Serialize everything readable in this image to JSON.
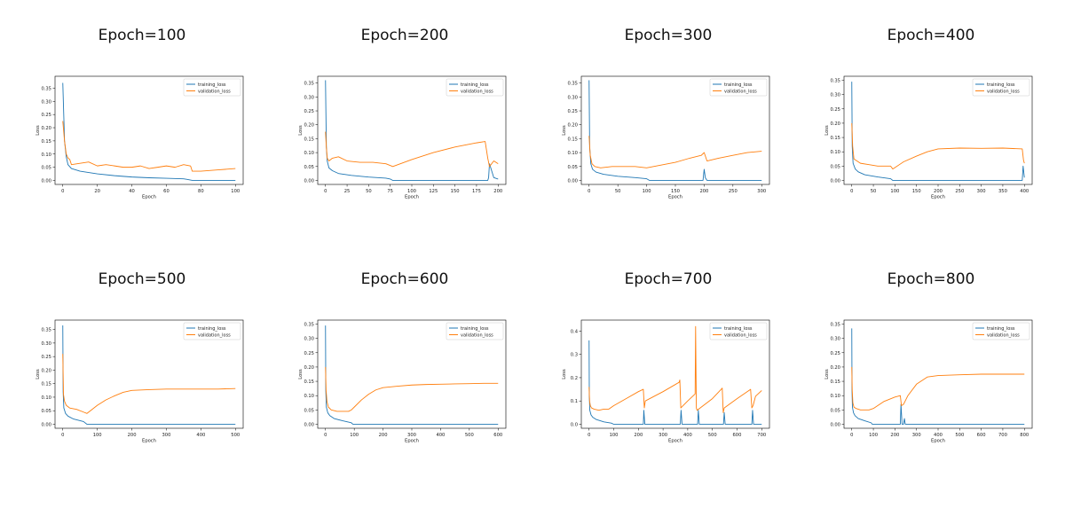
{
  "figure": {
    "legend_labels": [
      "training_loss",
      "validation_loss"
    ],
    "legend_position": "upper-right",
    "colors": {
      "training_loss": "#1f77b4",
      "validation_loss": "#ff7f0e",
      "axis": "#000000"
    }
  },
  "chart_data": [
    {
      "type": "line",
      "title": "Epoch=100",
      "xlabel": "Epoch",
      "ylabel": "Loss",
      "xlim": [
        0,
        100
      ],
      "ylim": [
        0,
        0.38
      ],
      "xticks": [
        0,
        20,
        40,
        60,
        80,
        100
      ],
      "yticks": [
        0.0,
        0.05,
        0.1,
        0.15,
        0.2,
        0.25,
        0.3,
        0.35
      ],
      "ytick_labels": [
        "0.00",
        "0.05",
        "0.10",
        "0.15",
        "0.20",
        "0.25",
        "0.30",
        "0.35"
      ],
      "series": [
        {
          "name": "training_loss",
          "x": [
            0,
            1,
            2,
            3,
            5,
            10,
            20,
            30,
            40,
            50,
            60,
            70,
            72,
            75,
            80,
            90,
            100
          ],
          "y": [
            0.37,
            0.15,
            0.09,
            0.06,
            0.045,
            0.035,
            0.025,
            0.018,
            0.013,
            0.01,
            0.008,
            0.006,
            0.004,
            0.0,
            0.0,
            0.0,
            0.0
          ]
        },
        {
          "name": "validation_loss",
          "x": [
            0,
            1,
            2,
            3,
            4,
            5,
            10,
            15,
            20,
            25,
            30,
            35,
            40,
            45,
            50,
            55,
            60,
            65,
            70,
            74,
            75,
            80,
            90,
            100
          ],
          "y": [
            0.225,
            0.15,
            0.1,
            0.085,
            0.08,
            0.06,
            0.065,
            0.07,
            0.055,
            0.06,
            0.055,
            0.05,
            0.05,
            0.055,
            0.045,
            0.05,
            0.055,
            0.05,
            0.06,
            0.055,
            0.035,
            0.035,
            0.04,
            0.045
          ]
        }
      ]
    },
    {
      "type": "line",
      "title": "Epoch=200",
      "xlabel": "Epoch",
      "ylabel": "Loss",
      "xlim": [
        0,
        200
      ],
      "ylim": [
        0,
        0.36
      ],
      "xticks": [
        0,
        25,
        50,
        75,
        100,
        125,
        150,
        175,
        200
      ],
      "yticks": [
        0.0,
        0.05,
        0.1,
        0.15,
        0.2,
        0.25,
        0.3,
        0.35
      ],
      "ytick_labels": [
        "0.00",
        "0.05",
        "0.10",
        "0.15",
        "0.20",
        "0.25",
        "0.30",
        "0.35"
      ],
      "series": [
        {
          "name": "training_loss",
          "x": [
            0,
            1,
            2,
            4,
            8,
            15,
            30,
            50,
            70,
            75,
            78,
            100,
            150,
            188,
            189,
            190,
            195,
            200
          ],
          "y": [
            0.36,
            0.12,
            0.07,
            0.045,
            0.035,
            0.025,
            0.018,
            0.012,
            0.008,
            0.005,
            0.0,
            0.0,
            0.0,
            0.0,
            0.01,
            0.06,
            0.01,
            0.005
          ]
        },
        {
          "name": "validation_loss",
          "x": [
            0,
            1,
            2,
            4,
            8,
            15,
            25,
            40,
            55,
            70,
            78,
            100,
            125,
            150,
            175,
            185,
            188,
            190,
            195,
            200
          ],
          "y": [
            0.175,
            0.12,
            0.08,
            0.07,
            0.08,
            0.085,
            0.07,
            0.065,
            0.065,
            0.06,
            0.05,
            0.075,
            0.1,
            0.12,
            0.135,
            0.14,
            0.08,
            0.05,
            0.07,
            0.06
          ]
        }
      ]
    },
    {
      "type": "line",
      "title": "Epoch=300",
      "xlabel": "Epoch",
      "ylabel": "Loss",
      "xlim": [
        0,
        300
      ],
      "ylim": [
        0,
        0.36
      ],
      "xticks": [
        0,
        50,
        100,
        150,
        200,
        250,
        300
      ],
      "yticks": [
        0.0,
        0.05,
        0.1,
        0.15,
        0.2,
        0.25,
        0.3,
        0.35
      ],
      "ytick_labels": [
        "0.00",
        "0.05",
        "0.10",
        "0.15",
        "0.20",
        "0.25",
        "0.30",
        "0.35"
      ],
      "series": [
        {
          "name": "training_loss",
          "x": [
            0,
            1,
            3,
            6,
            12,
            25,
            50,
            80,
            100,
            105,
            150,
            198,
            200,
            202,
            205,
            250,
            300
          ],
          "y": [
            0.36,
            0.12,
            0.06,
            0.04,
            0.03,
            0.022,
            0.015,
            0.01,
            0.006,
            0.0,
            0.0,
            0.0,
            0.04,
            0.01,
            0.0,
            0.0,
            0.0
          ]
        },
        {
          "name": "validation_loss",
          "x": [
            0,
            2,
            5,
            10,
            20,
            40,
            60,
            80,
            100,
            125,
            150,
            175,
            195,
            200,
            205,
            225,
            250,
            275,
            300
          ],
          "y": [
            0.16,
            0.09,
            0.06,
            0.05,
            0.045,
            0.05,
            0.05,
            0.05,
            0.045,
            0.055,
            0.065,
            0.08,
            0.09,
            0.1,
            0.07,
            0.08,
            0.09,
            0.1,
            0.105
          ]
        }
      ]
    },
    {
      "type": "line",
      "title": "Epoch=400",
      "xlabel": "Epoch",
      "ylabel": "Loss",
      "xlim": [
        0,
        400
      ],
      "ylim": [
        0,
        0.35
      ],
      "xticks": [
        0,
        50,
        100,
        150,
        200,
        250,
        300,
        350,
        400
      ],
      "yticks": [
        0.0,
        0.05,
        0.1,
        0.15,
        0.2,
        0.25,
        0.3,
        0.35
      ],
      "ytick_labels": [
        "0.00",
        "0.05",
        "0.10",
        "0.15",
        "0.20",
        "0.25",
        "0.30",
        "0.35"
      ],
      "series": [
        {
          "name": "training_loss",
          "x": [
            0,
            1,
            3,
            8,
            15,
            30,
            60,
            90,
            95,
            150,
            300,
            395,
            397,
            400
          ],
          "y": [
            0.345,
            0.12,
            0.06,
            0.04,
            0.03,
            0.02,
            0.012,
            0.006,
            0.0,
            0.0,
            0.0,
            0.0,
            0.05,
            0.01
          ]
        },
        {
          "name": "validation_loss",
          "x": [
            0,
            2,
            5,
            10,
            20,
            40,
            60,
            90,
            95,
            120,
            150,
            175,
            200,
            250,
            300,
            350,
            395,
            398,
            400
          ],
          "y": [
            0.2,
            0.12,
            0.075,
            0.07,
            0.06,
            0.055,
            0.05,
            0.05,
            0.04,
            0.065,
            0.085,
            0.1,
            0.11,
            0.113,
            0.112,
            0.113,
            0.11,
            0.07,
            0.06
          ]
        }
      ]
    },
    {
      "type": "line",
      "title": "Epoch=500",
      "xlabel": "Epoch",
      "ylabel": "Loss",
      "xlim": [
        0,
        500
      ],
      "ylim": [
        0,
        0.37
      ],
      "xticks": [
        0,
        100,
        200,
        300,
        400,
        500
      ],
      "yticks": [
        0.0,
        0.05,
        0.1,
        0.15,
        0.2,
        0.25,
        0.3,
        0.35
      ],
      "ytick_labels": [
        "0.00",
        "0.05",
        "0.10",
        "0.15",
        "0.20",
        "0.25",
        "0.30",
        "0.35"
      ],
      "series": [
        {
          "name": "training_loss",
          "x": [
            0,
            1,
            3,
            8,
            15,
            30,
            60,
            70,
            100,
            200,
            300,
            400,
            500
          ],
          "y": [
            0.365,
            0.12,
            0.06,
            0.04,
            0.03,
            0.02,
            0.01,
            0.0,
            0.0,
            0.0,
            0.0,
            0.0,
            0.0
          ]
        },
        {
          "name": "validation_loss",
          "x": [
            0,
            2,
            5,
            10,
            20,
            40,
            60,
            70,
            80,
            100,
            125,
            150,
            175,
            200,
            250,
            300,
            350,
            400,
            450,
            500
          ],
          "y": [
            0.26,
            0.11,
            0.085,
            0.07,
            0.06,
            0.055,
            0.045,
            0.04,
            0.05,
            0.07,
            0.09,
            0.105,
            0.118,
            0.125,
            0.128,
            0.13,
            0.13,
            0.13,
            0.13,
            0.132
          ]
        }
      ]
    },
    {
      "type": "line",
      "title": "Epoch=600",
      "xlabel": "Epoch",
      "ylabel": "Loss",
      "xlim": [
        0,
        600
      ],
      "ylim": [
        0,
        0.35
      ],
      "xticks": [
        0,
        100,
        200,
        300,
        400,
        500,
        600
      ],
      "yticks": [
        0.0,
        0.05,
        0.1,
        0.15,
        0.2,
        0.25,
        0.3,
        0.35
      ],
      "ytick_labels": [
        "0.00",
        "0.05",
        "0.10",
        "0.15",
        "0.20",
        "0.25",
        "0.30",
        "0.35"
      ],
      "series": [
        {
          "name": "training_loss",
          "x": [
            0,
            1,
            3,
            8,
            15,
            30,
            60,
            90,
            95,
            200,
            400,
            600
          ],
          "y": [
            0.345,
            0.12,
            0.06,
            0.04,
            0.03,
            0.02,
            0.012,
            0.005,
            0.0,
            0.0,
            0.0,
            0.0
          ]
        },
        {
          "name": "validation_loss",
          "x": [
            0,
            2,
            5,
            10,
            20,
            40,
            60,
            80,
            90,
            100,
            125,
            150,
            175,
            200,
            250,
            300,
            350,
            400,
            450,
            500,
            550,
            600
          ],
          "y": [
            0.2,
            0.12,
            0.08,
            0.06,
            0.05,
            0.045,
            0.045,
            0.045,
            0.05,
            0.06,
            0.085,
            0.105,
            0.12,
            0.128,
            0.133,
            0.137,
            0.139,
            0.14,
            0.141,
            0.142,
            0.143,
            0.143
          ]
        }
      ]
    },
    {
      "type": "line",
      "title": "Epoch=700",
      "xlabel": "Epoch",
      "ylabel": "Loss",
      "xlim": [
        0,
        700
      ],
      "ylim": [
        0,
        0.43
      ],
      "xticks": [
        0,
        100,
        200,
        300,
        400,
        500,
        600,
        700
      ],
      "yticks": [
        0.0,
        0.1,
        0.2,
        0.3,
        0.4
      ],
      "ytick_labels": [
        "0.0",
        "0.1",
        "0.2",
        "0.3",
        "0.4"
      ],
      "series": [
        {
          "name": "training_loss",
          "x": [
            0,
            1,
            3,
            8,
            15,
            30,
            60,
            90,
            100,
            220,
            222,
            226,
            370,
            373,
            377,
            440,
            443,
            447,
            545,
            548,
            552,
            660,
            663,
            667,
            690,
            700
          ],
          "y": [
            0.36,
            0.12,
            0.06,
            0.04,
            0.03,
            0.02,
            0.01,
            0.005,
            0.0,
            0.0,
            0.06,
            0.0,
            0.0,
            0.06,
            0.0,
            0.0,
            0.06,
            0.0,
            0.0,
            0.05,
            0.0,
            0.0,
            0.06,
            0.0,
            0.0,
            0.0
          ]
        },
        {
          "name": "validation_loss",
          "x": [
            0,
            2,
            5,
            10,
            20,
            40,
            60,
            80,
            100,
            150,
            200,
            220,
            224,
            228,
            300,
            365,
            368,
            372,
            400,
            430,
            432,
            435,
            438,
            500,
            540,
            544,
            548,
            600,
            655,
            660,
            665,
            675,
            700
          ],
          "y": [
            0.16,
            0.1,
            0.08,
            0.07,
            0.065,
            0.06,
            0.065,
            0.065,
            0.08,
            0.11,
            0.14,
            0.15,
            0.07,
            0.1,
            0.14,
            0.18,
            0.19,
            0.07,
            0.1,
            0.13,
            0.42,
            0.07,
            0.06,
            0.11,
            0.155,
            0.05,
            0.07,
            0.11,
            0.15,
            0.07,
            0.08,
            0.12,
            0.145
          ]
        }
      ]
    },
    {
      "type": "line",
      "title": "Epoch=800",
      "xlabel": "Epoch",
      "ylabel": "Loss",
      "xlim": [
        0,
        800
      ],
      "ylim": [
        0,
        0.35
      ],
      "xticks": [
        0,
        100,
        200,
        300,
        400,
        500,
        600,
        700,
        800
      ],
      "yticks": [
        0.0,
        0.05,
        0.1,
        0.15,
        0.2,
        0.25,
        0.3,
        0.35
      ],
      "ytick_labels": [
        "0.00",
        "0.05",
        "0.10",
        "0.15",
        "0.20",
        "0.25",
        "0.30",
        "0.35"
      ],
      "series": [
        {
          "name": "training_loss",
          "x": [
            0,
            1,
            3,
            8,
            15,
            30,
            60,
            90,
            95,
            225,
            228,
            233,
            240,
            244,
            248,
            400,
            600,
            800
          ],
          "y": [
            0.335,
            0.12,
            0.06,
            0.04,
            0.03,
            0.02,
            0.012,
            0.005,
            0.0,
            0.0,
            0.07,
            0.0,
            0.0,
            0.02,
            0.0,
            0.0,
            0.0,
            0.0
          ]
        },
        {
          "name": "validation_loss",
          "x": [
            0,
            2,
            5,
            10,
            20,
            40,
            60,
            80,
            100,
            150,
            200,
            225,
            230,
            240,
            260,
            300,
            350,
            400,
            500,
            600,
            700,
            800
          ],
          "y": [
            0.2,
            0.12,
            0.075,
            0.06,
            0.055,
            0.05,
            0.05,
            0.05,
            0.055,
            0.08,
            0.095,
            0.1,
            0.065,
            0.07,
            0.1,
            0.14,
            0.165,
            0.17,
            0.173,
            0.175,
            0.175,
            0.175
          ]
        }
      ]
    }
  ]
}
